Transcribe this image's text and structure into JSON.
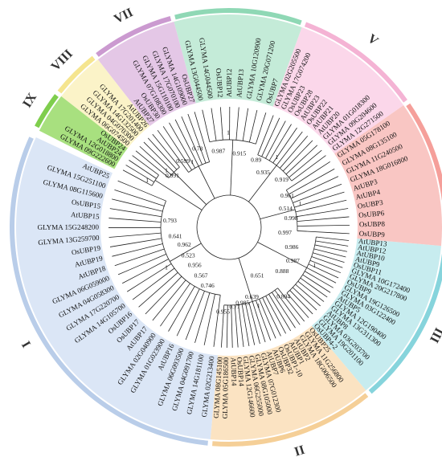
{
  "clades": [
    {
      "id": "I",
      "color": "#dbe6f6",
      "ring": "#b9cde9",
      "roman_angle": 250,
      "leaves": [
        "GLYMA 02G213400",
        "GLYMA 14G181100",
        "GLYMA 04G091700",
        "GLYMA 06G093500",
        "AtUBP16",
        "GLYMA 01G023900",
        "GLYMA 02G040900",
        "AtUBP17",
        "OsUBP17",
        "OsUBP16",
        "GLYMA 14G105700",
        "GLYMA 17G220700",
        "GLYMA 04G058300",
        "GLYMA 06G059000",
        "AtUBP18",
        "AtUBP19",
        "OsUBP19",
        "GLYMA 13G259700",
        "GLYMA 15G248200",
        "AtUBP15",
        "OsUBP15",
        "GLYMA 08G115600",
        "GLYMA 15G251100",
        "AtUBP25"
      ]
    },
    {
      "id": "II",
      "color": "#fbe3c2",
      "ring": "#f5cf97",
      "roman_angle": 180,
      "leaves": [
        "OsUBP25",
        "GLYMA 11G256800",
        "GLYMA 18G006500",
        "AtUBP2",
        "AtUBP1",
        "OsUBP1-10",
        "OsUBP32",
        "AtUBP6",
        "AtUBP7",
        "GLYMA 07G012300",
        "GLYMA 08G105000",
        "GLYMA 06G255000",
        "GLYMA 12G146600",
        "OsUBP14",
        "AtUBP14",
        "GLYMA 05G186500",
        "GLYMA 08G145100"
      ]
    },
    {
      "id": "III",
      "color": "#c7ecef",
      "ring": "#86d4dc",
      "roman_angle": 110,
      "leaves": [
        "AtUBP13",
        "AtUBP12",
        "AtUBP10",
        "AtUBP9",
        "OsUBP11",
        "GLYMA 10G172400",
        "GLYMA 20G217800",
        "OsUBP9",
        "GLYMA 19G126500",
        "GLYMA 03G122400",
        "AtUBP5",
        "GLYMA 12G190400",
        "GLYMA 13G311300",
        "AtUBP8",
        "GLYMA 03G203700",
        "GLYMA 19G201100",
        "OsUBP4-2"
      ]
    },
    {
      "id": "IV",
      "color": "#f9c6c3",
      "ring": "#f59f9a",
      "roman_angle": 65,
      "leaves": [
        "GLYMA 05G178100",
        "GLYMA 08G135100",
        "GLYMA 11G240500",
        "GLYMA 18G016800",
        "AtUBP3",
        "AtUBP4",
        "OsUBP3",
        "OsUBP6",
        "OsUBP8",
        "OsUBP9"
      ]
    },
    {
      "id": "V",
      "color": "#fbd7ea",
      "ring": "#f4b3d4",
      "roman_angle": 32,
      "leaves": [
        "GLYMA 02G205500",
        "GLYMA 17G074200",
        "OsUBP23",
        "OsUBP28",
        "AtUBP23",
        "OsUBP22",
        "AtUBP21",
        "AtUBP20",
        "GLYMA 01G018300",
        "GLYMA 09G204600",
        "GLYMA 12G271500"
      ]
    },
    {
      "id": "VI",
      "color": "#c4ebd8",
      "ring": "#8fd8b5",
      "roman_angle": 0,
      "leaves": [
        "GLYMA 13G044500",
        "GLYMA 14G044500",
        "OsUBP12",
        "AtUBP12",
        "AtUBP13",
        "GLYMA 10G120900",
        "GLYMA 20G071200",
        "OsUBP7"
      ]
    },
    {
      "id": "VII",
      "color": "#e4c7e6",
      "ring": "#cb9ad0",
      "roman_angle": -28,
      "leaves": [
        "AtUBP27",
        "OsUBP30",
        "GLYMA 07G108300",
        "GLYMA 15G110100",
        "GLYMA 17G070100",
        "GLYMA 14G109000",
        "OsUBP27"
      ]
    },
    {
      "id": "VIII",
      "color": "#fbf3c8",
      "ring": "#f5e58f",
      "roman_angle": -45,
      "leaves": [
        "GLYMA 06G074500",
        "GLYMA 04G070300",
        "GLYMA 14G132500",
        "GLYMA 17G201400",
        "AtUBP26"
      ]
    },
    {
      "id": "IX",
      "color": "#a8e07f",
      "ring": "#7fce4d",
      "roman_angle": -59,
      "leaves": [
        "GLYMA 09G222600",
        "GLYMA 12G018800",
        "AtUBP24",
        "OsUBP24"
      ]
    }
  ],
  "bootstrap": [
    "0.991",
    "0.599",
    "0.78",
    "0.987",
    "0.915",
    "0.89",
    "0.935",
    "0.919",
    "0.961",
    "0.514",
    "0.998",
    "0.746",
    "0.567",
    "0.956",
    "0.523",
    "0.962",
    "0.641",
    "0.793",
    "0.997",
    "0.986",
    "0.987",
    "0.651",
    "0.639",
    "0.985",
    "0.77",
    "0.955",
    "0.888",
    "0.894"
  ],
  "bootstrap_one": "1",
  "colors": {
    "branch": "#222222",
    "text": "#111111"
  }
}
